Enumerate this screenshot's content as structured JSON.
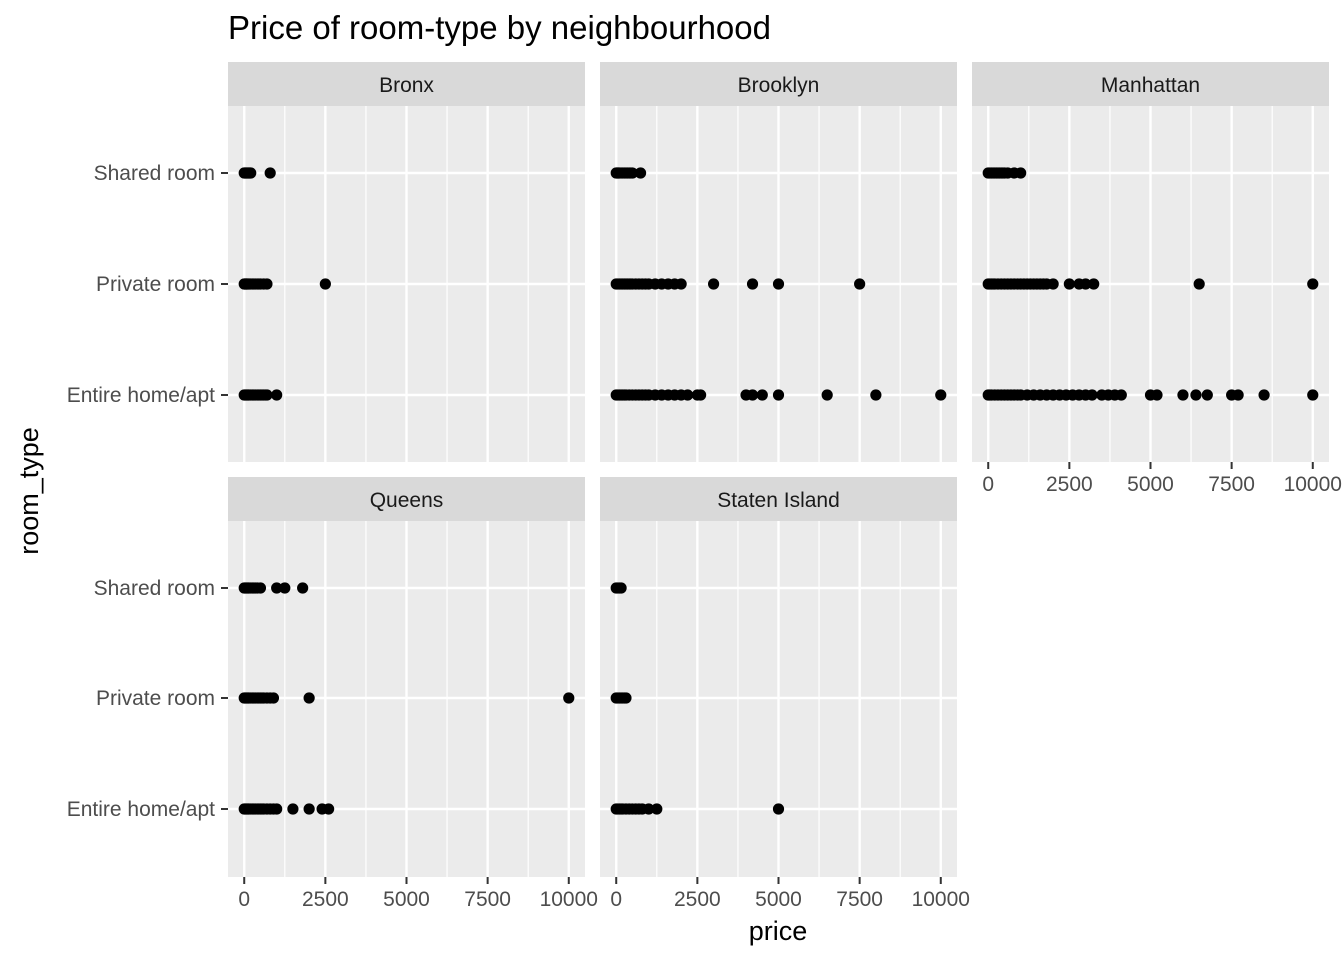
{
  "chart_data": {
    "type": "scatter",
    "title": "Price of room-type by neighbourhood",
    "xlabel": "price",
    "ylabel": "room_type",
    "xlim": [
      -500,
      10500
    ],
    "x_ticks": [
      0,
      2500,
      5000,
      7500,
      10000
    ],
    "x_tick_labels": [
      "0",
      "2500",
      "5000",
      "7500",
      "10000"
    ],
    "y_categories": [
      "Entire home/apt",
      "Private room",
      "Shared room"
    ],
    "facet_by": "neighbourhood",
    "legend": "none",
    "grid": true,
    "panels": [
      {
        "name": "Bronx",
        "points": {
          "Shared room": [
            0,
            25,
            50,
            75,
            100,
            125,
            150,
            175,
            200,
            800
          ],
          "Private room": [
            0,
            20,
            40,
            60,
            80,
            100,
            130,
            160,
            200,
            250,
            300,
            350,
            400,
            450,
            500,
            600,
            700,
            2500
          ],
          "Entire home/apt": [
            0,
            30,
            60,
            90,
            120,
            150,
            200,
            250,
            300,
            350,
            400,
            450,
            500,
            550,
            600,
            650,
            700,
            1000
          ]
        }
      },
      {
        "name": "Brooklyn",
        "points": {
          "Shared room": [
            0,
            25,
            50,
            75,
            100,
            150,
            200,
            250,
            300,
            350,
            400,
            450,
            500,
            750
          ],
          "Private room": [
            0,
            50,
            100,
            150,
            200,
            250,
            300,
            350,
            400,
            450,
            500,
            600,
            700,
            800,
            900,
            1000,
            1200,
            1400,
            1600,
            1800,
            2000,
            3000,
            4200,
            5000,
            7500
          ],
          "Entire home/apt": [
            0,
            50,
            100,
            150,
            200,
            250,
            300,
            400,
            500,
            600,
            700,
            800,
            900,
            1000,
            1200,
            1400,
            1600,
            1800,
            2000,
            2200,
            2500,
            2600,
            4000,
            4200,
            4500,
            5000,
            6500,
            8000,
            10000
          ]
        }
      },
      {
        "name": "Manhattan",
        "points": {
          "Shared room": [
            0,
            50,
            100,
            150,
            200,
            250,
            300,
            350,
            400,
            450,
            500,
            600,
            800,
            1000
          ],
          "Private room": [
            0,
            50,
            100,
            150,
            200,
            300,
            400,
            500,
            600,
            700,
            800,
            900,
            1000,
            1100,
            1200,
            1300,
            1400,
            1500,
            1600,
            1700,
            1800,
            2000,
            2500,
            2800,
            3000,
            3250,
            6500,
            10000
          ],
          "Entire home/apt": [
            0,
            50,
            100,
            200,
            300,
            400,
            500,
            600,
            700,
            800,
            900,
            1000,
            1200,
            1400,
            1600,
            1800,
            2000,
            2200,
            2400,
            2600,
            2800,
            3000,
            3200,
            3500,
            3700,
            3900,
            4100,
            5000,
            5200,
            6000,
            6400,
            6750,
            7500,
            7700,
            8500,
            10000
          ]
        }
      },
      {
        "name": "Queens",
        "points": {
          "Shared room": [
            0,
            30,
            60,
            90,
            120,
            150,
            200,
            250,
            300,
            350,
            400,
            500,
            1000,
            1250,
            1800
          ],
          "Private room": [
            0,
            30,
            60,
            90,
            120,
            150,
            200,
            250,
            300,
            350,
            400,
            450,
            500,
            550,
            600,
            700,
            800,
            900,
            2000,
            10000
          ],
          "Entire home/apt": [
            0,
            30,
            60,
            90,
            120,
            150,
            200,
            250,
            300,
            350,
            400,
            450,
            500,
            550,
            600,
            700,
            800,
            900,
            1000,
            1500,
            2000,
            2400,
            2600
          ]
        }
      },
      {
        "name": "Staten Island",
        "points": {
          "Shared room": [
            0,
            50,
            100,
            150
          ],
          "Private room": [
            0,
            50,
            100,
            150,
            200,
            250,
            300
          ],
          "Entire home/apt": [
            0,
            50,
            100,
            150,
            200,
            300,
            400,
            500,
            600,
            700,
            800,
            1000,
            1250,
            5000
          ]
        }
      }
    ]
  }
}
